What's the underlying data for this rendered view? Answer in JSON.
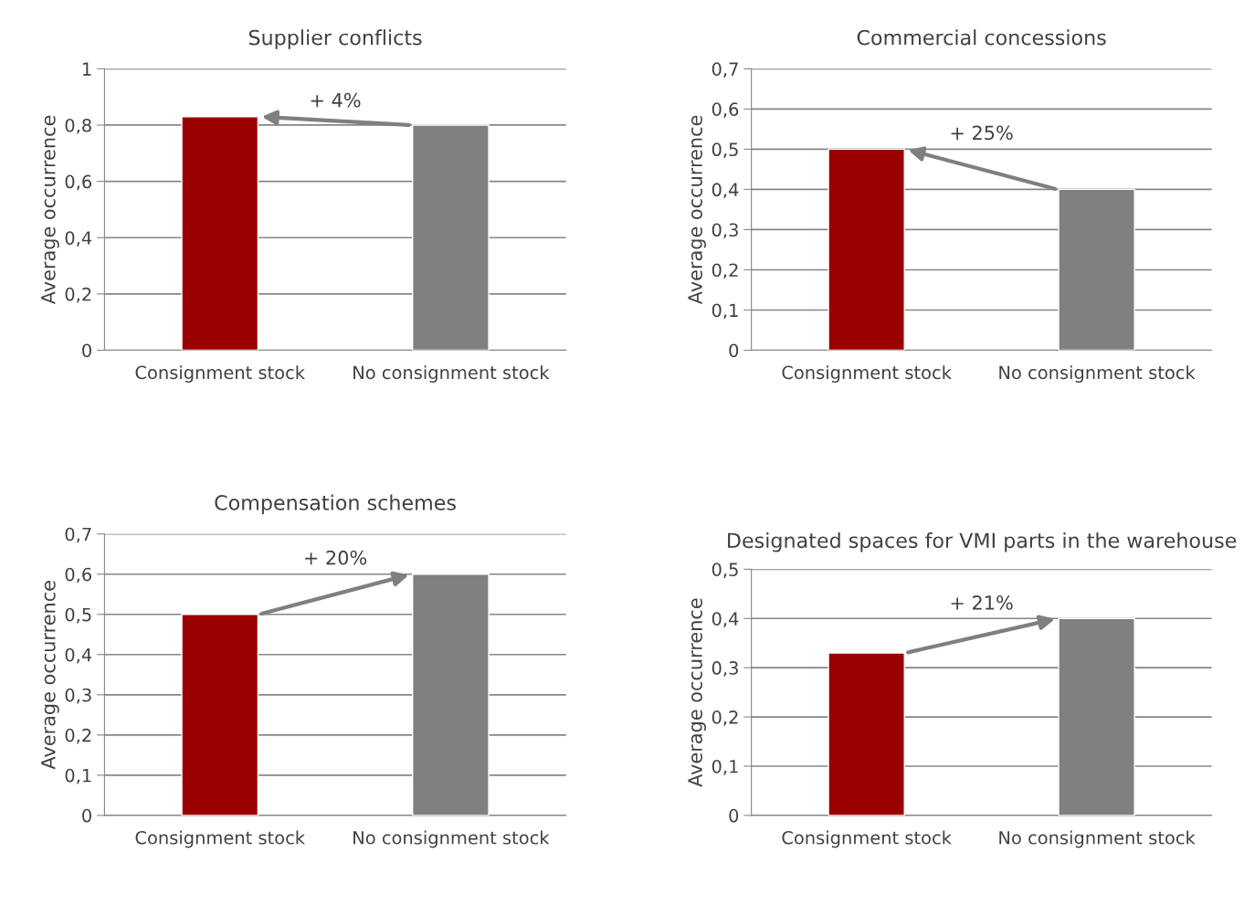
{
  "chart_data": [
    {
      "type": "bar",
      "title": "Supplier conflicts",
      "ylabel": "Average occurrence",
      "categories": [
        "Consignment stock",
        "No consignment stock"
      ],
      "values": [
        0.83,
        0.8
      ],
      "colors": [
        "#9b0000",
        "#808080"
      ],
      "ylim": [
        0,
        1
      ],
      "yticks": [
        0,
        {
          "value": 0.2,
          "label": "0,2"
        },
        {
          "value": 0.4,
          "label": "0,4"
        },
        {
          "value": 0.6,
          "label": "0,6"
        },
        {
          "value": 0.8,
          "label": "0,8"
        },
        1
      ],
      "grid": "y",
      "annotations": [
        "+ 4%"
      ]
    },
    {
      "type": "bar",
      "title": "Commercial concessions",
      "ylabel": "Average occurrence",
      "categories": [
        "Consignment stock",
        "No consignment stock"
      ],
      "values": [
        0.5,
        0.4
      ],
      "colors": [
        "#9b0000",
        "#808080"
      ],
      "ylim": [
        0,
        0.7
      ],
      "yticks": [
        0,
        {
          "value": 0.1,
          "label": "0,1"
        },
        {
          "value": 0.2,
          "label": "0,2"
        },
        {
          "value": 0.3,
          "label": "0,3"
        },
        {
          "value": 0.4,
          "label": "0,4"
        },
        {
          "value": 0.5,
          "label": "0,5"
        },
        {
          "value": 0.6,
          "label": "0,6"
        },
        {
          "value": 0.7,
          "label": "0,7"
        }
      ],
      "grid": "y",
      "annotations": [
        "+ 25%"
      ]
    },
    {
      "type": "bar",
      "title": "Compensation schemes",
      "ylabel": "Average occurrence",
      "categories": [
        "Consignment stock",
        "No consignment stock"
      ],
      "values": [
        0.5,
        0.6
      ],
      "colors": [
        "#9b0000",
        "#808080"
      ],
      "ylim": [
        0,
        0.7
      ],
      "yticks": [
        0,
        {
          "value": 0.1,
          "label": "0,1"
        },
        {
          "value": 0.2,
          "label": "0,2"
        },
        {
          "value": 0.3,
          "label": "0,3"
        },
        {
          "value": 0.4,
          "label": "0,4"
        },
        {
          "value": 0.5,
          "label": "0,5"
        },
        {
          "value": 0.6,
          "label": "0,6"
        },
        {
          "value": 0.7,
          "label": "0,7"
        }
      ],
      "grid": "y",
      "annotations": [
        "+ 20%"
      ]
    },
    {
      "type": "bar",
      "title": "Designated spaces for VMI parts in the warehouse",
      "ylabel": "Average occurrence",
      "categories": [
        "Consignment stock",
        "No consignment stock"
      ],
      "values": [
        0.33,
        0.4
      ],
      "colors": [
        "#9b0000",
        "#808080"
      ],
      "ylim": [
        0,
        0.5
      ],
      "yticks": [
        0,
        {
          "value": 0.1,
          "label": "0,1"
        },
        {
          "value": 0.2,
          "label": "0,2"
        },
        {
          "value": 0.3,
          "label": "0,3"
        },
        {
          "value": 0.4,
          "label": "0,4"
        },
        {
          "value": 0.5,
          "label": "0,5"
        }
      ],
      "grid": "y",
      "annotations": [
        "+ 21%"
      ]
    }
  ]
}
